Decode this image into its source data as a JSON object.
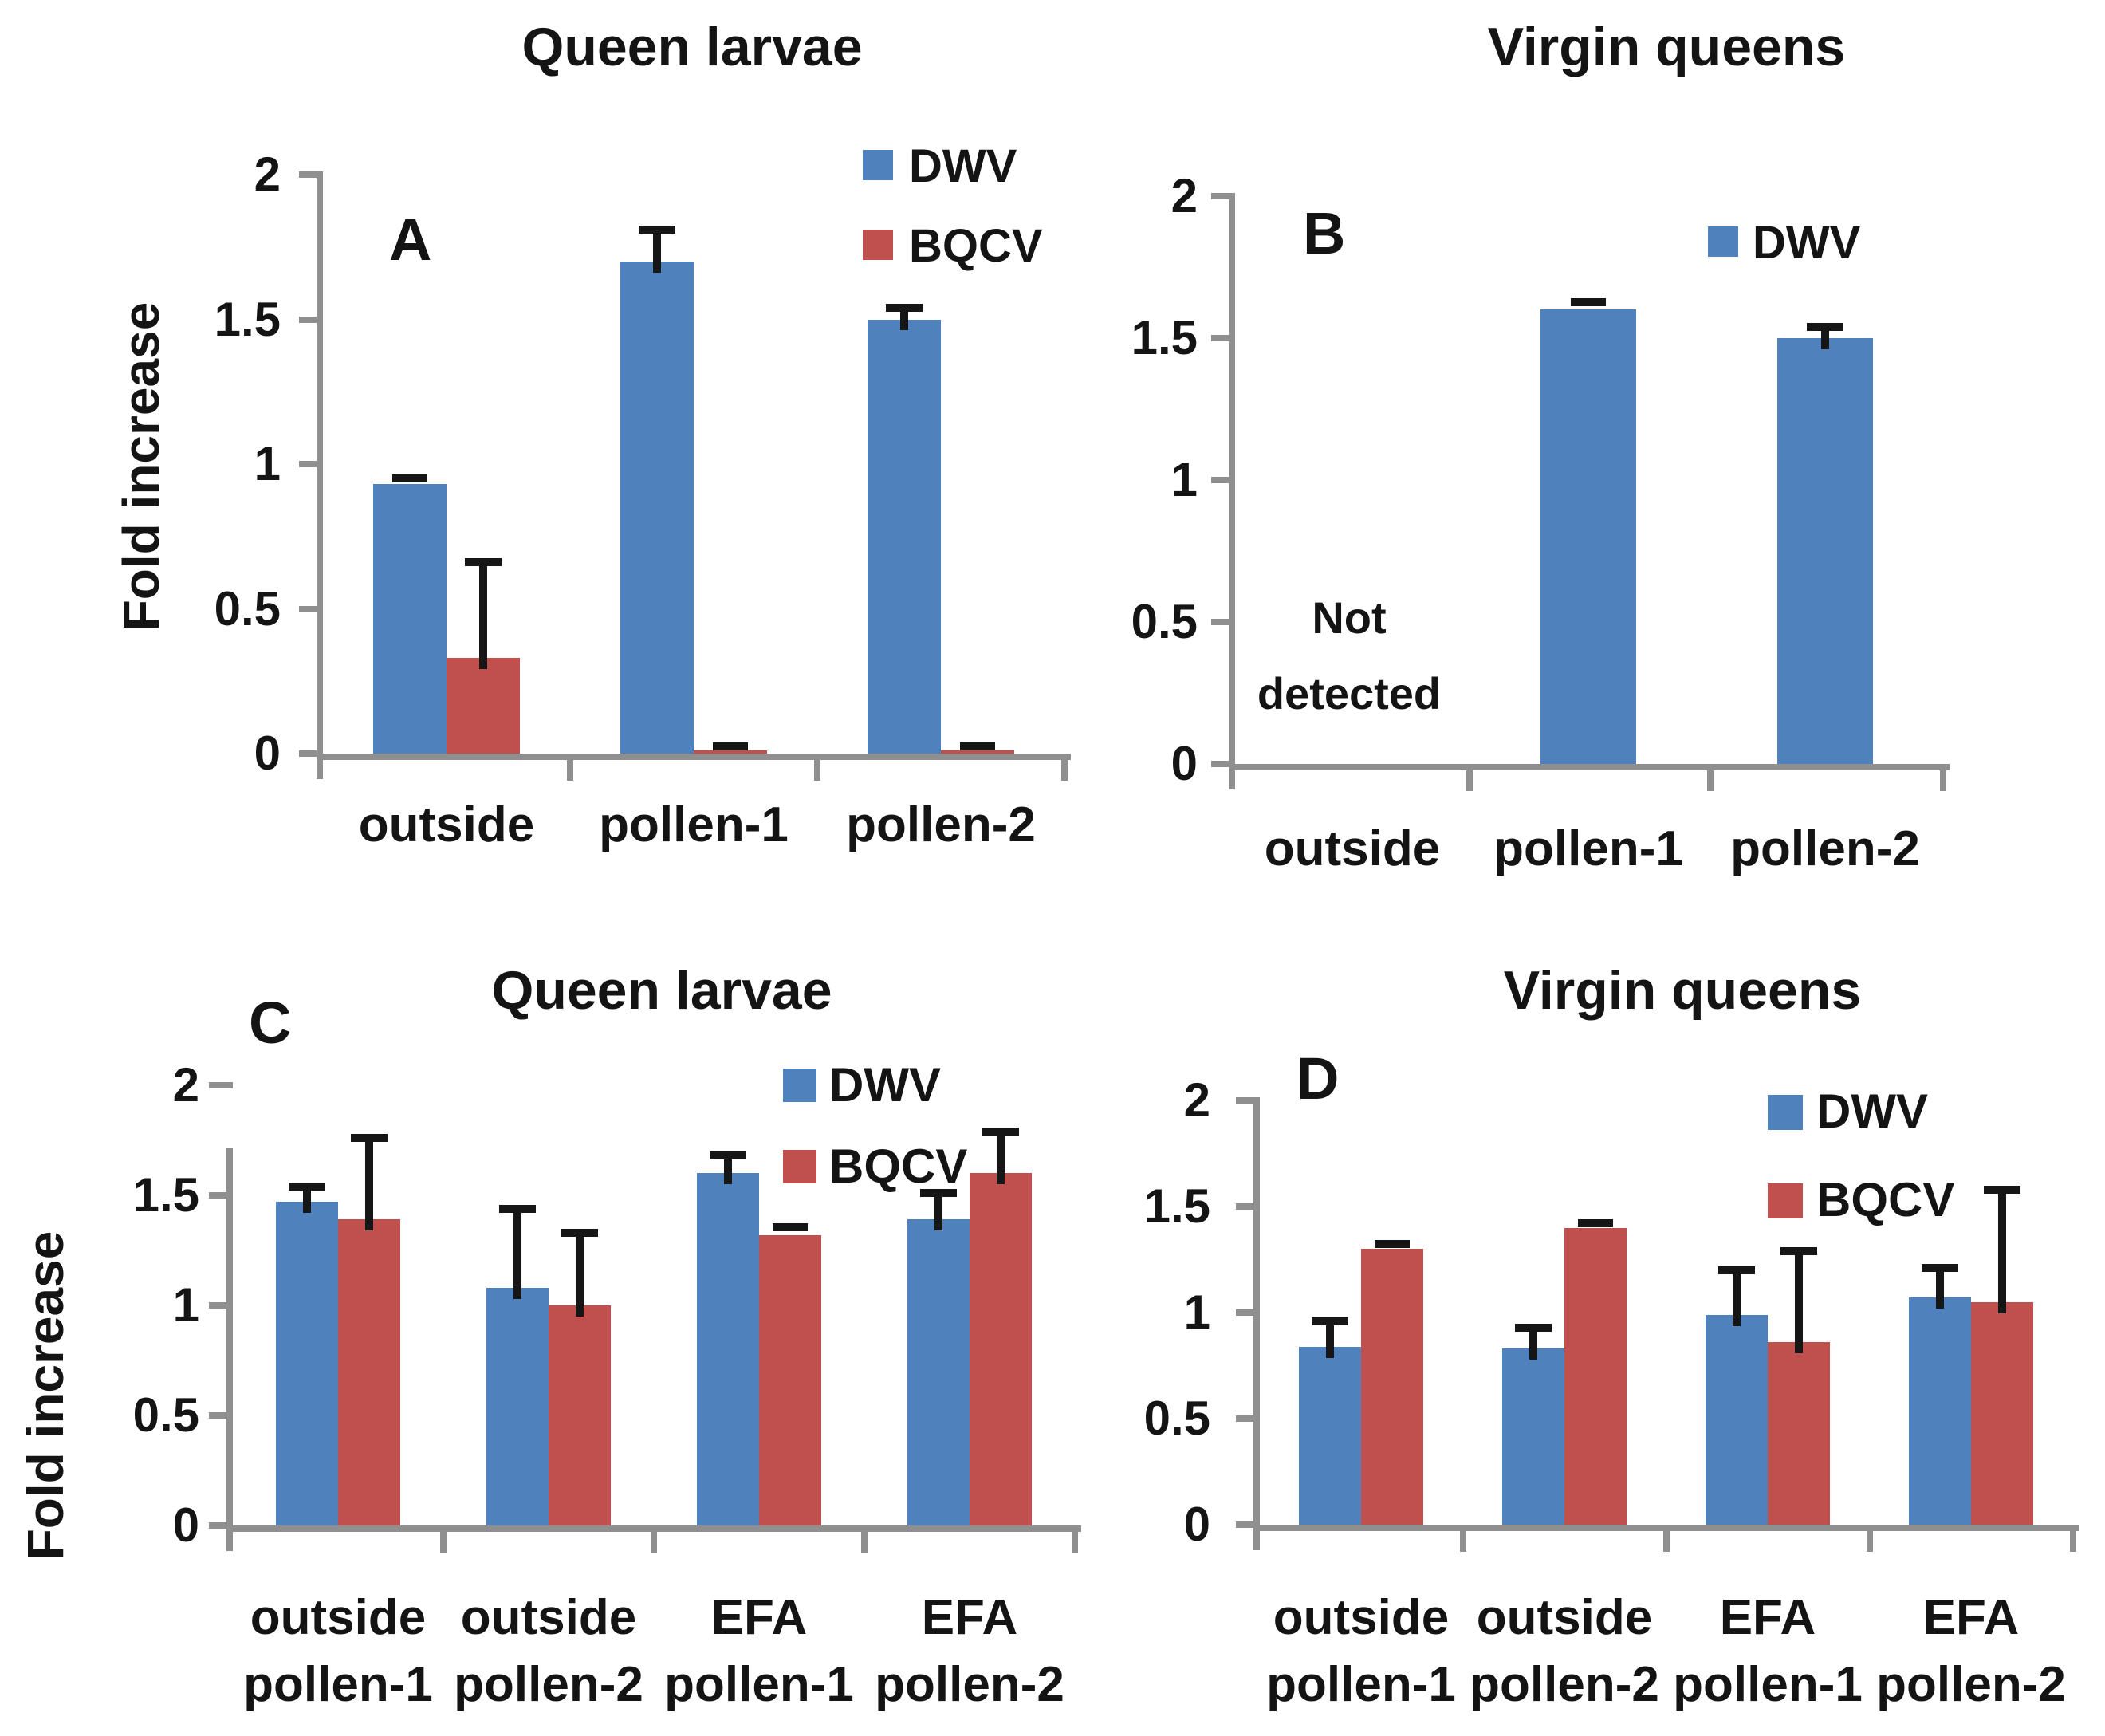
{
  "colors": {
    "dwv_blue": "#4f81bd",
    "bqcv_red": "#c0504d",
    "axis_gray": "#8f8f8f",
    "error_black": "#161616",
    "text_black": "#141414"
  },
  "chart_data": [
    {
      "panel": "A",
      "type": "bar",
      "title": "Queen larvae",
      "ylabel": "Fold increase",
      "ylim": [
        0,
        2
      ],
      "yticks": [
        0,
        0.5,
        1,
        1.5,
        2
      ],
      "grid": false,
      "legend_position": "top-right",
      "legend": [
        "DWV",
        "BQCV"
      ],
      "categories": [
        "outside",
        "pollen-1",
        "pollen-2"
      ],
      "series": [
        {
          "name": "DWV",
          "color": "#4f81bd",
          "values": [
            0.93,
            1.7,
            1.5
          ],
          "errors": [
            0.01,
            0.11,
            0.04
          ]
        },
        {
          "name": "BQCV",
          "color": "#c0504d",
          "values": [
            0.33,
            0.01,
            0.01
          ],
          "errors": [
            0.33,
            0.005,
            0.005
          ]
        }
      ]
    },
    {
      "panel": "B",
      "type": "bar",
      "title": "Virgin queens",
      "ylabel": "",
      "ylim": [
        0,
        2
      ],
      "yticks": [
        0,
        0.5,
        1,
        1.5,
        2
      ],
      "grid": false,
      "legend_position": "top-right",
      "legend": [
        "DWV"
      ],
      "annotation": {
        "text": "Not detected",
        "lines": [
          "Not",
          "detected"
        ],
        "over_category": "outside"
      },
      "categories": [
        "outside",
        "pollen-1",
        "pollen-2"
      ],
      "series": [
        {
          "name": "DWV",
          "color": "#4f81bd",
          "values": [
            null,
            1.6,
            1.5
          ],
          "errors": [
            null,
            0.015,
            0.04
          ]
        }
      ]
    },
    {
      "panel": "C",
      "type": "bar",
      "title": "Queen larvae",
      "ylabel": "Fold increase",
      "ylim": [
        0,
        2
      ],
      "yticks": [
        0,
        0.5,
        1,
        1.5,
        2
      ],
      "grid": false,
      "legend_position": "top-right",
      "legend": [
        "DWV",
        "BQCV"
      ],
      "categories": [
        "outside pollen-1",
        "outside pollen-2",
        "EFA pollen-1",
        "EFA pollen-2"
      ],
      "category_lines": [
        [
          "outside",
          "pollen-1"
        ],
        [
          "outside",
          "pollen-2"
        ],
        [
          "EFA",
          "pollen-1"
        ],
        [
          "EFA",
          "pollen-2"
        ]
      ],
      "series": [
        {
          "name": "DWV",
          "color": "#4f81bd",
          "values": [
            1.47,
            1.08,
            1.6,
            1.39
          ],
          "errors": [
            0.07,
            0.36,
            0.08,
            0.12
          ]
        },
        {
          "name": "BQCV",
          "color": "#c0504d",
          "values": [
            1.39,
            1.0,
            1.32,
            1.6
          ],
          "errors": [
            0.37,
            0.33,
            0.02,
            0.19
          ]
        }
      ]
    },
    {
      "panel": "D",
      "type": "bar",
      "title": "Virgin queens",
      "ylabel": "",
      "ylim": [
        0,
        2
      ],
      "yticks": [
        0,
        0.5,
        1,
        1.5,
        2
      ],
      "grid": false,
      "legend_position": "top-right",
      "legend": [
        "DWV",
        "BQCV"
      ],
      "categories": [
        "outside pollen-1",
        "outside pollen-2",
        "EFA pollen-1",
        "EFA pollen-2"
      ],
      "category_lines": [
        [
          "outside",
          "pollen-1"
        ],
        [
          "outside",
          "pollen-2"
        ],
        [
          "EFA",
          "pollen-1"
        ],
        [
          "EFA",
          "pollen-2"
        ]
      ],
      "series": [
        {
          "name": "DWV",
          "color": "#4f81bd",
          "values": [
            0.84,
            0.83,
            0.99,
            1.07
          ],
          "errors": [
            0.12,
            0.1,
            0.21,
            0.14
          ]
        },
        {
          "name": "BQCV",
          "color": "#c0504d",
          "values": [
            1.3,
            1.4,
            0.86,
            1.05
          ],
          "errors": [
            0.01,
            0.005,
            0.43,
            0.53
          ]
        }
      ]
    }
  ]
}
